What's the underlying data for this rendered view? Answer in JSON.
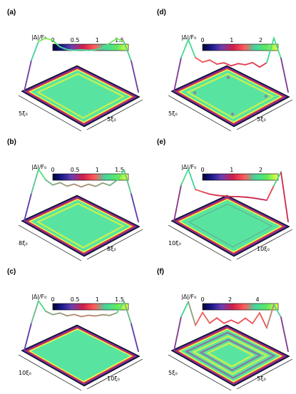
{
  "panels": [
    {
      "id": "a",
      "label": "(a)",
      "colorbar": {
        "title": "|Δ|/F₀",
        "ticks": [
          "0",
          "0.5",
          "1",
          "1.5"
        ],
        "max": 1.7
      },
      "axes": {
        "left": "5ξ₀",
        "right": "5ξ₀"
      },
      "profile": [
        0,
        0.9,
        1.45,
        1.55,
        1.48,
        1.3,
        1.22,
        1.2,
        1.22,
        1.2,
        1.22,
        1.28,
        1.42,
        1.55,
        1.45,
        0.9,
        0
      ],
      "interior": "ring"
    },
    {
      "id": "b",
      "label": "(b)",
      "colorbar": {
        "title": "|Δ|/F₀",
        "ticks": [
          "0",
          "0.5",
          "1",
          "1.5"
        ],
        "max": 1.7
      },
      "axes": {
        "left": "8ξ₀",
        "right": "8ξ₀"
      },
      "profile": [
        0,
        0.8,
        1.5,
        1.2,
        1.05,
        1.12,
        1.02,
        1.08,
        1.0,
        1.08,
        1.02,
        1.12,
        1.05,
        1.2,
        1.5,
        0.8,
        0
      ],
      "interior": "ring"
    },
    {
      "id": "c",
      "label": "(c)",
      "colorbar": {
        "title": "|Δ|/F₀",
        "ticks": [
          "0",
          "0.5",
          "1",
          "1.5"
        ],
        "max": 1.7
      },
      "axes": {
        "left": "10ξ₀",
        "right": "10ξ₀"
      },
      "profile": [
        0,
        0.8,
        1.45,
        1.15,
        1.05,
        1.1,
        1.02,
        1.06,
        1.0,
        1.04,
        1.02,
        1.06,
        1.04,
        1.12,
        1.45,
        0.8,
        0
      ],
      "interior": "flat"
    },
    {
      "id": "d",
      "label": "(d)",
      "colorbar": {
        "title": "|Δ|/F₀",
        "ticks": [
          "0",
          "1",
          "2"
        ],
        "max": 2.6
      },
      "axes": {
        "left": "5ξ₀",
        "right": "5ξ₀"
      },
      "profile": [
        0,
        1.5,
        2.3,
        1.5,
        1.3,
        1.4,
        1.22,
        1.28,
        1.15,
        1.25,
        1.2,
        1.3,
        1.1,
        1.3,
        2.4,
        1.5,
        0
      ],
      "interior": "ringdots"
    },
    {
      "id": "e",
      "label": "(e)",
      "colorbar": {
        "title": "|Δ|/F₀",
        "ticks": [
          "0",
          "1",
          "2"
        ],
        "max": 2.6
      },
      "axes": {
        "left": "10ξ₀",
        "right": "10ξ₀"
      },
      "profile": [
        0,
        1.6,
        2.3,
        1.4,
        1.3,
        1.2,
        1.15,
        1.12,
        1.1,
        1.1,
        1.08,
        1.05,
        1.0,
        0.95,
        1.6,
        2.2,
        0
      ],
      "interior": "flat"
    },
    {
      "id": "f",
      "label": "(f)",
      "colorbar": {
        "title": "|Δ|/F₀",
        "ticks": [
          "0",
          "2",
          "4"
        ],
        "max": 5.5
      },
      "axes": {
        "left": "5ξ₀",
        "right": "5ξ₀"
      },
      "profile": [
        0,
        3.2,
        4.6,
        2.4,
        3.6,
        2.6,
        3.1,
        2.6,
        2.9,
        2.6,
        3.1,
        2.6,
        3.6,
        2.2,
        4.4,
        3.2,
        0
      ],
      "interior": "rings"
    }
  ]
}
